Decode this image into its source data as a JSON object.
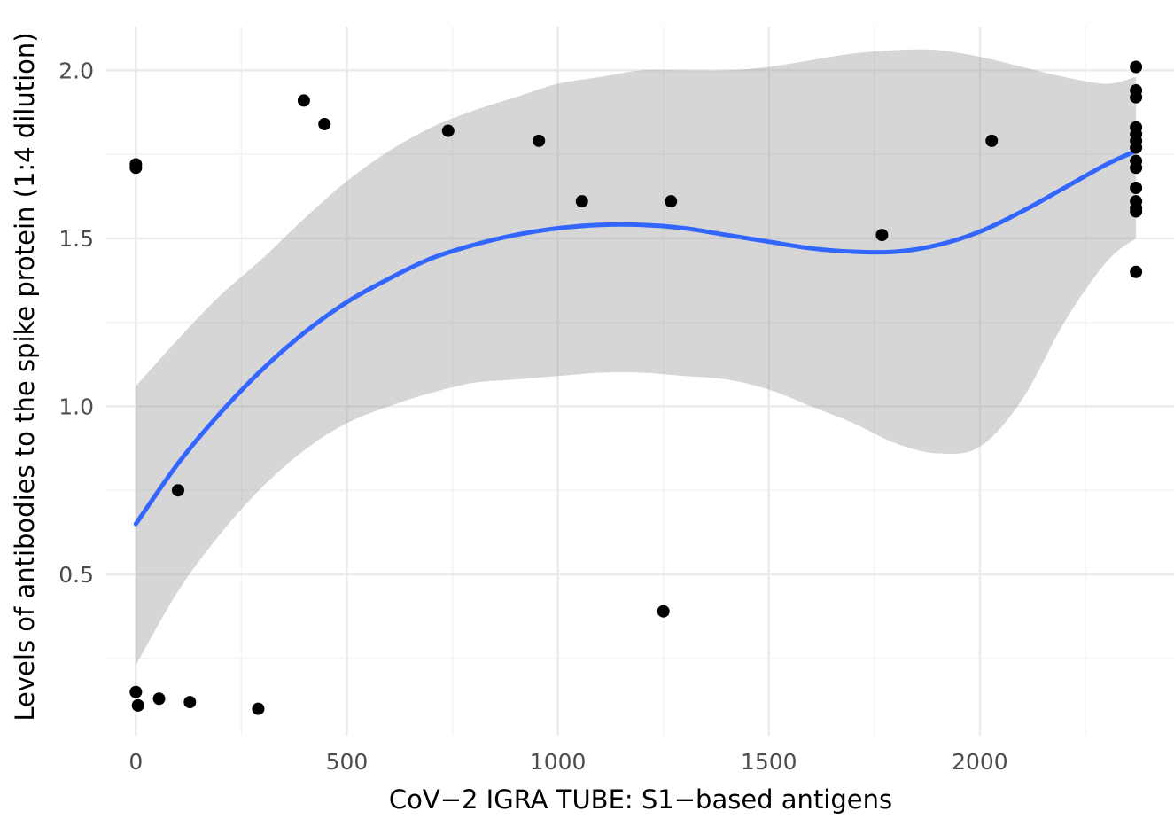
{
  "chart_data": {
    "type": "scatter",
    "xlabel": "CoV−2 IGRA TUBE: S1−based antigens",
    "ylabel": "Levels of antibodies to the spike protein (1:4 dilution)",
    "xlim": [
      -70,
      2460
    ],
    "ylim": [
      0.02,
      2.13
    ],
    "x_ticks": [
      0,
      500,
      1000,
      1500,
      2000
    ],
    "x_tick_labels": [
      "0",
      "500",
      "1000",
      "1500",
      "2000"
    ],
    "y_ticks": [
      0.5,
      1.0,
      1.5,
      2.0
    ],
    "y_tick_labels": [
      "0.5",
      "1.0",
      "1.5",
      "2.0"
    ],
    "grid": true,
    "points": [
      {
        "x": 0,
        "y": 1.72
      },
      {
        "x": 0,
        "y": 1.71
      },
      {
        "x": 0,
        "y": 0.15
      },
      {
        "x": 5,
        "y": 0.11
      },
      {
        "x": 55,
        "y": 0.13
      },
      {
        "x": 100,
        "y": 0.75
      },
      {
        "x": 128,
        "y": 0.12
      },
      {
        "x": 290,
        "y": 0.1
      },
      {
        "x": 398,
        "y": 1.91
      },
      {
        "x": 447,
        "y": 1.84
      },
      {
        "x": 740,
        "y": 1.82
      },
      {
        "x": 955,
        "y": 1.79
      },
      {
        "x": 1057,
        "y": 1.61
      },
      {
        "x": 1250,
        "y": 0.39
      },
      {
        "x": 1268,
        "y": 1.61
      },
      {
        "x": 1768,
        "y": 1.51
      },
      {
        "x": 2028,
        "y": 1.79
      },
      {
        "x": 2370,
        "y": 2.01
      },
      {
        "x": 2370,
        "y": 1.94
      },
      {
        "x": 2370,
        "y": 1.92
      },
      {
        "x": 2370,
        "y": 1.83
      },
      {
        "x": 2370,
        "y": 1.81
      },
      {
        "x": 2370,
        "y": 1.79
      },
      {
        "x": 2370,
        "y": 1.77
      },
      {
        "x": 2370,
        "y": 1.73
      },
      {
        "x": 2370,
        "y": 1.71
      },
      {
        "x": 2370,
        "y": 1.65
      },
      {
        "x": 2370,
        "y": 1.61
      },
      {
        "x": 2370,
        "y": 1.59
      },
      {
        "x": 2370,
        "y": 1.58
      },
      {
        "x": 2370,
        "y": 1.4
      }
    ],
    "smooth": {
      "x": [
        0,
        100,
        200,
        300,
        400,
        500,
        600,
        700,
        800,
        900,
        1000,
        1100,
        1200,
        1300,
        1400,
        1500,
        1600,
        1700,
        1800,
        1900,
        2000,
        2100,
        2200,
        2300,
        2370
      ],
      "y": [
        0.65,
        0.83,
        0.98,
        1.11,
        1.22,
        1.31,
        1.38,
        1.44,
        1.48,
        1.51,
        1.53,
        1.54,
        1.54,
        1.53,
        1.51,
        1.49,
        1.47,
        1.46,
        1.46,
        1.48,
        1.52,
        1.58,
        1.65,
        1.72,
        1.76
      ],
      "lower": [
        0.23,
        0.45,
        0.62,
        0.76,
        0.87,
        0.95,
        1.0,
        1.04,
        1.07,
        1.08,
        1.09,
        1.1,
        1.1,
        1.09,
        1.08,
        1.05,
        1.0,
        0.95,
        0.89,
        0.86,
        0.88,
        1.02,
        1.25,
        1.43,
        1.5
      ],
      "upper": [
        1.06,
        1.2,
        1.33,
        1.44,
        1.56,
        1.67,
        1.76,
        1.83,
        1.88,
        1.92,
        1.96,
        1.98,
        2.0,
        2.0,
        2.0,
        2.01,
        2.03,
        2.05,
        2.06,
        2.06,
        2.04,
        2.01,
        1.98,
        1.96,
        1.98
      ]
    },
    "colors": {
      "points": "#000000",
      "line": "#3366ff",
      "band": "#999999",
      "grid_major": "#ebebeb",
      "grid_minor": "#f2f2f2",
      "tick_text": "#4d4d4d"
    }
  }
}
